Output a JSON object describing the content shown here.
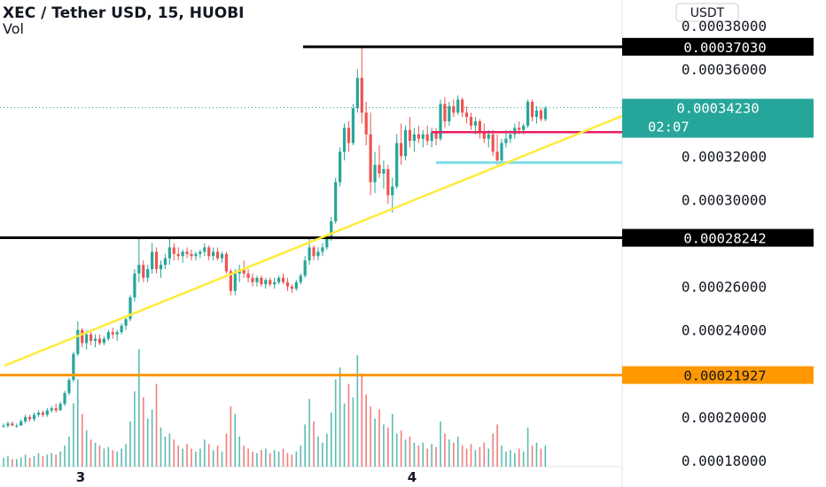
{
  "header": {
    "title": "XEC / Tether USD, 15, HUOBI",
    "vol_label": "Vol"
  },
  "currency_button": "USDT",
  "colors": {
    "up": "#26a69a",
    "down": "#ef5350",
    "trendline": "#ffeb3b",
    "level_black": "#000000",
    "level_orange": "#ff9800",
    "level_red": "#e91e63",
    "level_cyan": "#80deea",
    "last_price_tag": "#26a69a"
  },
  "price_axis": {
    "min": 0.00018,
    "max": 0.00038,
    "ticks": [
      "0.00038000",
      "0.00036000",
      "0.00032000",
      "0.00030000",
      "0.00026000",
      "0.00024000",
      "0.00020000",
      "0.00018000"
    ]
  },
  "level_tags": [
    {
      "label": "0.00037030",
      "value": 0.0003703,
      "color": "#000000",
      "text_color": "#ffffff"
    },
    {
      "label": "0.00028242",
      "value": 0.00028242,
      "color": "#000000",
      "text_color": "#ffffff"
    },
    {
      "label": "0.00021927",
      "value": 0.00021927,
      "color": "#ff9800",
      "text_color": "#131722"
    }
  ],
  "last_price": {
    "label": "0.00034230",
    "countdown": "02:07",
    "value": 0.0003423
  },
  "time_axis": {
    "labels": [
      "3",
      "4"
    ]
  },
  "chart_data": {
    "type": "candlestick",
    "symbol": "XEC / Tether USD",
    "interval": "15",
    "exchange": "HUOBI",
    "ylim": [
      0.00018,
      0.00038
    ],
    "x_labels": [
      "3",
      "4"
    ],
    "candles": [
      [
        0.000196,
        0.000197,
        0.000195,
        0.000196
      ],
      [
        0.000196,
        0.000198,
        0.000195,
        0.000197
      ],
      [
        0.000197,
        0.000198,
        0.000196,
        0.000196
      ],
      [
        0.000196,
        0.000197,
        0.000195,
        0.000196
      ],
      [
        0.000196,
        0.000199,
        0.000196,
        0.000198
      ],
      [
        0.000198,
        0.000201,
        0.000197,
        0.0002
      ],
      [
        0.0002,
        0.000201,
        0.000198,
        0.000199
      ],
      [
        0.000199,
        0.000202,
        0.000198,
        0.000201
      ],
      [
        0.000201,
        0.000203,
        0.0002,
        0.000202
      ],
      [
        0.000202,
        0.000203,
        0.0002,
        0.000201
      ],
      [
        0.000201,
        0.000204,
        0.0002,
        0.000203
      ],
      [
        0.000203,
        0.000205,
        0.000202,
        0.000204
      ],
      [
        0.000204,
        0.000206,
        0.000202,
        0.000203
      ],
      [
        0.000203,
        0.000207,
        0.000203,
        0.000206
      ],
      [
        0.000206,
        0.000212,
        0.000205,
        0.000211
      ],
      [
        0.000211,
        0.000218,
        0.00021,
        0.000217
      ],
      [
        0.000217,
        0.00023,
        0.000216,
        0.000229
      ],
      [
        0.000229,
        0.000244,
        0.000228,
        0.00024
      ],
      [
        0.00024,
        0.000241,
        0.000232,
        0.000234
      ],
      [
        0.000234,
        0.00024,
        0.000231,
        0.000238
      ],
      [
        0.000238,
        0.000239,
        0.000233,
        0.000235
      ],
      [
        0.000235,
        0.000238,
        0.000232,
        0.000236
      ],
      [
        0.000236,
        0.000238,
        0.000233,
        0.000234
      ],
      [
        0.000234,
        0.000237,
        0.000233,
        0.000236
      ],
      [
        0.000236,
        0.00024,
        0.000235,
        0.000239
      ],
      [
        0.000239,
        0.000241,
        0.000236,
        0.000238
      ],
      [
        0.000238,
        0.00024,
        0.000235,
        0.000239
      ],
      [
        0.000239,
        0.000243,
        0.000238,
        0.000242
      ],
      [
        0.000242,
        0.000246,
        0.00024,
        0.000245
      ],
      [
        0.000245,
        0.000256,
        0.000244,
        0.000255
      ],
      [
        0.000255,
        0.000268,
        0.000253,
        0.000266
      ],
      [
        0.000266,
        0.000282,
        0.000262,
        0.00027
      ],
      [
        0.00027,
        0.000272,
        0.000262,
        0.000264
      ],
      [
        0.000264,
        0.00027,
        0.000262,
        0.000268
      ],
      [
        0.000268,
        0.00028,
        0.000266,
        0.000276
      ],
      [
        0.000276,
        0.000278,
        0.000266,
        0.000268
      ],
      [
        0.000268,
        0.000272,
        0.000264,
        0.00027
      ],
      [
        0.00027,
        0.000275,
        0.000268,
        0.000273
      ],
      [
        0.000273,
        0.000282,
        0.00027,
        0.000278
      ],
      [
        0.000278,
        0.00028,
        0.000272,
        0.000275
      ],
      [
        0.000275,
        0.000278,
        0.000272,
        0.000274
      ],
      [
        0.000274,
        0.000277,
        0.000271,
        0.000276
      ],
      [
        0.000276,
        0.000278,
        0.000273,
        0.000275
      ],
      [
        0.000275,
        0.000277,
        0.000272,
        0.000274
      ],
      [
        0.000274,
        0.000276,
        0.000272,
        0.000275
      ],
      [
        0.000275,
        0.000277,
        0.000273,
        0.000276
      ],
      [
        0.000276,
        0.00028,
        0.000274,
        0.000278
      ],
      [
        0.000278,
        0.000279,
        0.000272,
        0.000274
      ],
      [
        0.000274,
        0.000278,
        0.000272,
        0.000276
      ],
      [
        0.000276,
        0.000278,
        0.000272,
        0.000273
      ],
      [
        0.000273,
        0.000276,
        0.000271,
        0.000275
      ],
      [
        0.000275,
        0.000276,
        0.000266,
        0.000267
      ],
      [
        0.000267,
        0.000268,
        0.000256,
        0.000258
      ],
      [
        0.000258,
        0.000268,
        0.000256,
        0.000266
      ],
      [
        0.000266,
        0.00027,
        0.000262,
        0.000268
      ],
      [
        0.000268,
        0.000272,
        0.000264,
        0.000266
      ],
      [
        0.000266,
        0.000268,
        0.000262,
        0.000264
      ],
      [
        0.000264,
        0.000266,
        0.00026,
        0.000262
      ],
      [
        0.000262,
        0.000265,
        0.00026,
        0.000264
      ],
      [
        0.000264,
        0.000265,
        0.00026,
        0.000261
      ],
      [
        0.000261,
        0.000264,
        0.000259,
        0.000263
      ],
      [
        0.000263,
        0.000264,
        0.00026,
        0.000261
      ],
      [
        0.000261,
        0.000264,
        0.000259,
        0.000262
      ],
      [
        0.000262,
        0.000265,
        0.000261,
        0.000264
      ],
      [
        0.000264,
        0.000266,
        0.000261,
        0.000262
      ],
      [
        0.000262,
        0.000264,
        0.000258,
        0.00026
      ],
      [
        0.00026,
        0.000261,
        0.000257,
        0.000259
      ],
      [
        0.000259,
        0.000263,
        0.000258,
        0.000262
      ],
      [
        0.000262,
        0.000266,
        0.000261,
        0.000265
      ],
      [
        0.000265,
        0.000274,
        0.000264,
        0.000272
      ],
      [
        0.000272,
        0.000282,
        0.00027,
        0.000278
      ],
      [
        0.000278,
        0.000279,
        0.000272,
        0.000274
      ],
      [
        0.000274,
        0.000278,
        0.000272,
        0.000276
      ],
      [
        0.000276,
        0.00028,
        0.000274,
        0.000278
      ],
      [
        0.000278,
        0.000283,
        0.000277,
        0.000282
      ],
      [
        0.000282,
        0.000292,
        0.000281,
        0.00029
      ],
      [
        0.00029,
        0.00031,
        0.000289,
        0.000308
      ],
      [
        0.000308,
        0.000324,
        0.000306,
        0.000322
      ],
      [
        0.000322,
        0.000335,
        0.000318,
        0.000333
      ],
      [
        0.000333,
        0.000336,
        0.000322,
        0.000326
      ],
      [
        0.000326,
        0.000344,
        0.000325,
        0.000342
      ],
      [
        0.000342,
        0.00036,
        0.00034,
        0.000356
      ],
      [
        0.000356,
        0.00037,
        0.000335,
        0.00034
      ],
      [
        0.00034,
        0.000345,
        0.000325,
        0.00033
      ],
      [
        0.00033,
        0.00034,
        0.000302,
        0.000308
      ],
      [
        0.000308,
        0.000322,
        0.000303,
        0.000316
      ],
      [
        0.000316,
        0.000325,
        0.00031,
        0.000312
      ],
      [
        0.000312,
        0.000318,
        0.000305,
        0.000314
      ],
      [
        0.000314,
        0.000316,
        0.000298,
        0.000302
      ],
      [
        0.000302,
        0.00031,
        0.000294,
        0.000306
      ],
      [
        0.000306,
        0.00033,
        0.000305,
        0.000326
      ],
      [
        0.000326,
        0.000335,
        0.000316,
        0.00032
      ],
      [
        0.00032,
        0.000334,
        0.000318,
        0.000332
      ],
      [
        0.000332,
        0.000338,
        0.000324,
        0.000327
      ],
      [
        0.000327,
        0.000333,
        0.000322,
        0.00033
      ],
      [
        0.00033,
        0.000334,
        0.000326,
        0.000328
      ],
      [
        0.000328,
        0.000332,
        0.000324,
        0.00033
      ],
      [
        0.00033,
        0.000334,
        0.000325,
        0.000327
      ],
      [
        0.000327,
        0.000333,
        0.000324,
        0.000331
      ],
      [
        0.000331,
        0.000333,
        0.000325,
        0.000328
      ],
      [
        0.000328,
        0.000346,
        0.000327,
        0.000344
      ],
      [
        0.000344,
        0.000347,
        0.000333,
        0.000336
      ],
      [
        0.000336,
        0.000345,
        0.000334,
        0.000343
      ],
      [
        0.000343,
        0.000346,
        0.000338,
        0.00034
      ],
      [
        0.00034,
        0.000348,
        0.000339,
        0.000346
      ],
      [
        0.000346,
        0.000347,
        0.000338,
        0.00034
      ],
      [
        0.00034,
        0.000343,
        0.000335,
        0.000338
      ],
      [
        0.000338,
        0.00034,
        0.000332,
        0.000334
      ],
      [
        0.000334,
        0.000338,
        0.00033,
        0.000336
      ],
      [
        0.000336,
        0.000337,
        0.000328,
        0.000331
      ],
      [
        0.000331,
        0.000335,
        0.000326,
        0.000328
      ],
      [
        0.000328,
        0.000332,
        0.000324,
        0.00033
      ],
      [
        0.00033,
        0.000332,
        0.00032,
        0.000322
      ],
      [
        0.000322,
        0.00033,
        0.000316,
        0.000318
      ],
      [
        0.000318,
        0.000328,
        0.000317,
        0.000326
      ],
      [
        0.000326,
        0.000332,
        0.000324,
        0.000328
      ],
      [
        0.000328,
        0.000332,
        0.000326,
        0.00033
      ],
      [
        0.00033,
        0.000335,
        0.000328,
        0.000333
      ],
      [
        0.000333,
        0.000336,
        0.00033,
        0.000332
      ],
      [
        0.000332,
        0.000335,
        0.00033,
        0.000334
      ],
      [
        0.000334,
        0.000346,
        0.000333,
        0.000345
      ],
      [
        0.000345,
        0.000346,
        0.000336,
        0.000338
      ],
      [
        0.000338,
        0.000343,
        0.000335,
        0.000341
      ],
      [
        0.000341,
        0.000342,
        0.000336,
        0.000337
      ],
      [
        0.000337,
        0.000343,
        0.000336,
        0.000342
      ]
    ],
    "volumes": [
      6,
      7,
      5,
      5,
      6,
      8,
      6,
      7,
      9,
      7,
      8,
      9,
      8,
      10,
      14,
      20,
      42,
      58,
      35,
      24,
      18,
      16,
      14,
      12,
      13,
      11,
      10,
      12,
      15,
      30,
      50,
      78,
      46,
      32,
      38,
      55,
      26,
      20,
      22,
      18,
      14,
      12,
      15,
      12,
      10,
      12,
      18,
      15,
      11,
      14,
      10,
      22,
      40,
      35,
      20,
      14,
      12,
      10,
      9,
      11,
      12,
      9,
      11,
      10,
      12,
      9,
      8,
      10,
      14,
      28,
      45,
      30,
      20,
      16,
      22,
      36,
      58,
      66,
      42,
      55,
      46,
      74,
      62,
      48,
      40,
      32,
      38,
      28,
      26,
      35,
      22,
      24,
      18,
      20,
      16,
      14,
      16,
      12,
      15,
      13,
      30,
      22,
      18,
      16,
      20,
      14,
      12,
      15,
      11,
      13,
      16,
      12,
      22,
      28,
      14,
      10,
      11,
      9,
      12,
      10,
      26,
      14,
      16,
      12,
      14
    ],
    "horizontal_levels": [
      {
        "value": 0.0003703,
        "color": "#000000",
        "label": "0.00037030"
      },
      {
        "value": 0.00028242,
        "color": "#000000",
        "label": "0.00028242"
      },
      {
        "value": 0.00021927,
        "color": "#ff9800",
        "label": "0.00021927"
      },
      {
        "value": 0.000331,
        "color": "#e91e63"
      },
      {
        "value": 0.000317,
        "color": "#80deea"
      }
    ],
    "trendline": {
      "color": "#ffeb3b"
    },
    "last_price": 0.0003423,
    "grid": false,
    "legend": "top-left"
  }
}
